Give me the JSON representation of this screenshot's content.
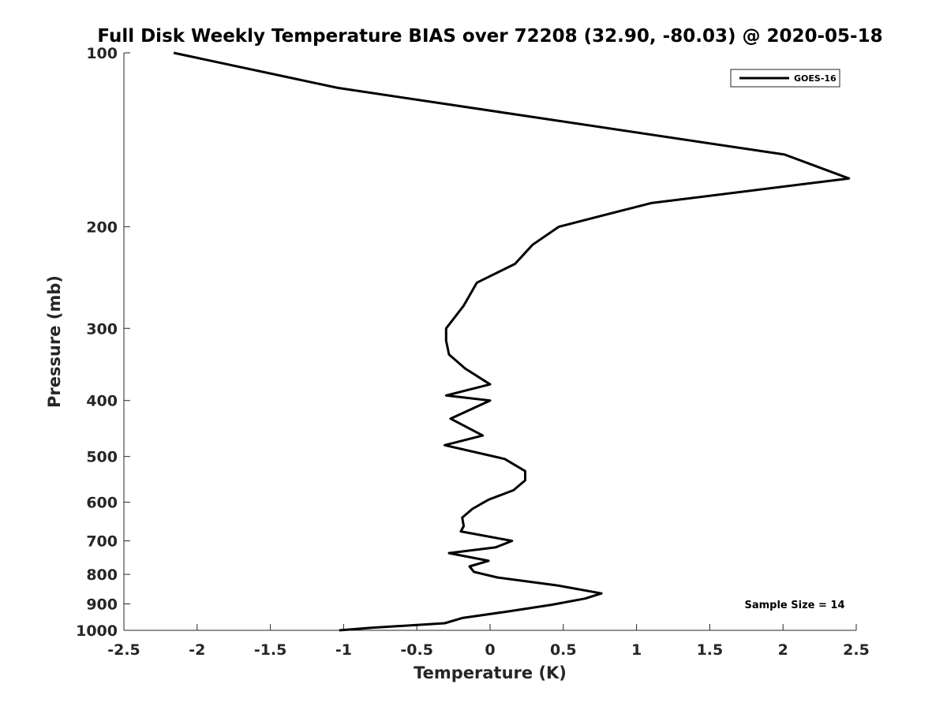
{
  "chart_data": {
    "type": "line",
    "title": "Full Disk Weekly Temperature BIAS over 72208 (32.90, -80.03) @ 2020-05-18",
    "xlabel": "Temperature (K)",
    "ylabel": "Pressure (mb)",
    "xlim": [
      -2.5,
      2.5
    ],
    "ylim": [
      100,
      1000
    ],
    "y_scale": "log",
    "y_reversed": true,
    "x_ticks": [
      -2.5,
      -2,
      -1.5,
      -1,
      -0.5,
      0,
      0.5,
      1,
      1.5,
      2,
      2.5
    ],
    "x_tick_labels": [
      "-2.5",
      "-2",
      "-1.5",
      "-1",
      "-0.5",
      "0",
      "0.5",
      "1",
      "1.5",
      "2",
      "2.5"
    ],
    "y_ticks": [
      100,
      200,
      300,
      400,
      500,
      600,
      700,
      800,
      900,
      1000
    ],
    "y_tick_labels": [
      "100",
      "200",
      "300",
      "400",
      "500",
      "600",
      "700",
      "800",
      "900",
      "1000"
    ],
    "grid": false,
    "legend_position": "top-right",
    "line_color": "#000000",
    "series": [
      {
        "name": "GOES-16",
        "x": [
          -2.16,
          -1.04,
          2.01,
          2.45,
          1.1,
          0.47,
          0.29,
          0.17,
          -0.09,
          -0.18,
          -0.3,
          -0.3,
          -0.28,
          -0.17,
          0.0,
          -0.3,
          0.0,
          -0.27,
          -0.05,
          -0.31,
          0.1,
          0.24,
          0.24,
          0.16,
          -0.01,
          -0.12,
          -0.19,
          -0.18,
          -0.2,
          0.15,
          0.04,
          -0.28,
          -0.01,
          -0.14,
          -0.11,
          0.05,
          0.46,
          0.76,
          0.65,
          0.42,
          0.13,
          -0.19,
          -0.31,
          -0.81,
          -1.03
        ],
        "y": [
          100,
          115,
          150,
          165,
          182,
          200,
          215,
          232,
          250,
          274,
          300,
          315,
          333,
          352,
          375,
          392,
          400,
          430,
          460,
          478,
          505,
          530,
          550,
          572,
          594,
          616,
          638,
          660,
          674,
          700,
          718,
          735,
          758,
          775,
          792,
          810,
          836,
          863,
          881,
          903,
          927,
          952,
          972,
          990,
          1000
        ]
      }
    ],
    "annotations": [
      "Sample Size = 14"
    ]
  }
}
